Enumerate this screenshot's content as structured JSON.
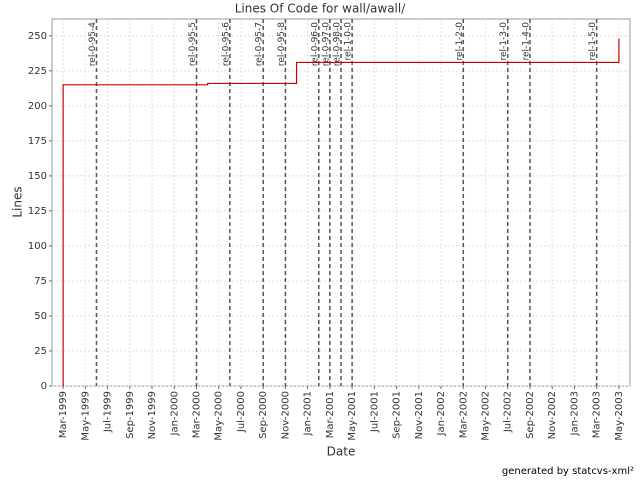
{
  "chart_data": {
    "type": "line",
    "title": "Lines Of Code for wall/awall/",
    "x_label": "Date",
    "y_label": "Lines",
    "footer": "generated by statcvs-xml²",
    "step": true,
    "grid": true,
    "xlim": [
      "1999-02",
      "2003-06"
    ],
    "xticks": [
      {
        "value": "1999-03",
        "label": "Mar-1999"
      },
      {
        "value": "1999-05",
        "label": "May-1999"
      },
      {
        "value": "1999-07",
        "label": "Jul-1999"
      },
      {
        "value": "1999-09",
        "label": "Sep-1999"
      },
      {
        "value": "1999-11",
        "label": "Nov-1999"
      },
      {
        "value": "2000-01",
        "label": "Jan-2000"
      },
      {
        "value": "2000-03",
        "label": "Mar-2000"
      },
      {
        "value": "2000-05",
        "label": "May-2000"
      },
      {
        "value": "2000-07",
        "label": "Jul-2000"
      },
      {
        "value": "2000-09",
        "label": "Sep-2000"
      },
      {
        "value": "2000-11",
        "label": "Nov-2000"
      },
      {
        "value": "2001-01",
        "label": "Jan-2001"
      },
      {
        "value": "2001-03",
        "label": "Mar-2001"
      },
      {
        "value": "2001-05",
        "label": "May-2001"
      },
      {
        "value": "2001-07",
        "label": "Jul-2001"
      },
      {
        "value": "2001-09",
        "label": "Sep-2001"
      },
      {
        "value": "2001-11",
        "label": "Nov-2001"
      },
      {
        "value": "2002-01",
        "label": "Jan-2002"
      },
      {
        "value": "2002-03",
        "label": "Mar-2002"
      },
      {
        "value": "2002-05",
        "label": "May-2002"
      },
      {
        "value": "2002-07",
        "label": "Jul-2002"
      },
      {
        "value": "2002-09",
        "label": "Sep-2002"
      },
      {
        "value": "2002-11",
        "label": "Nov-2002"
      },
      {
        "value": "2003-01",
        "label": "Jan-2003"
      },
      {
        "value": "2003-03",
        "label": "Mar-2003"
      },
      {
        "value": "2003-05",
        "label": "May-2003"
      }
    ],
    "ylim": [
      0,
      262
    ],
    "yticks": [
      0,
      25,
      50,
      75,
      100,
      125,
      150,
      175,
      200,
      225,
      250
    ],
    "x": [
      "1999-03",
      "1999-03",
      "2000-04",
      "2000-12",
      "2003-05"
    ],
    "series": [
      {
        "color": "#cc0000",
        "values": [
          0,
          215,
          216,
          231,
          248
        ]
      }
    ],
    "markers": [
      {
        "label": "rel-0-95-4",
        "x": "1999-06"
      },
      {
        "label": "rel-0-95-5",
        "x": "2000-03"
      },
      {
        "label": "rel-0-95-6",
        "x": "2000-06"
      },
      {
        "label": "rel-0-95-7",
        "x": "2000-09"
      },
      {
        "label": "rel-0-95-8",
        "x": "2000-11"
      },
      {
        "label": "rel-0-96-0",
        "x": "2001-02"
      },
      {
        "label": "rel-0-97-0",
        "x": "2001-03"
      },
      {
        "label": "rel-0-98-0",
        "x": "2001-04"
      },
      {
        "label": "rel-1-0-0",
        "x": "2001-05"
      },
      {
        "label": "rel-1-2-0",
        "x": "2002-03"
      },
      {
        "label": "rel-1-3-0",
        "x": "2002-07"
      },
      {
        "label": "rel-1-4-0",
        "x": "2002-09"
      },
      {
        "label": "rel-1-5-0",
        "x": "2003-03"
      }
    ]
  }
}
